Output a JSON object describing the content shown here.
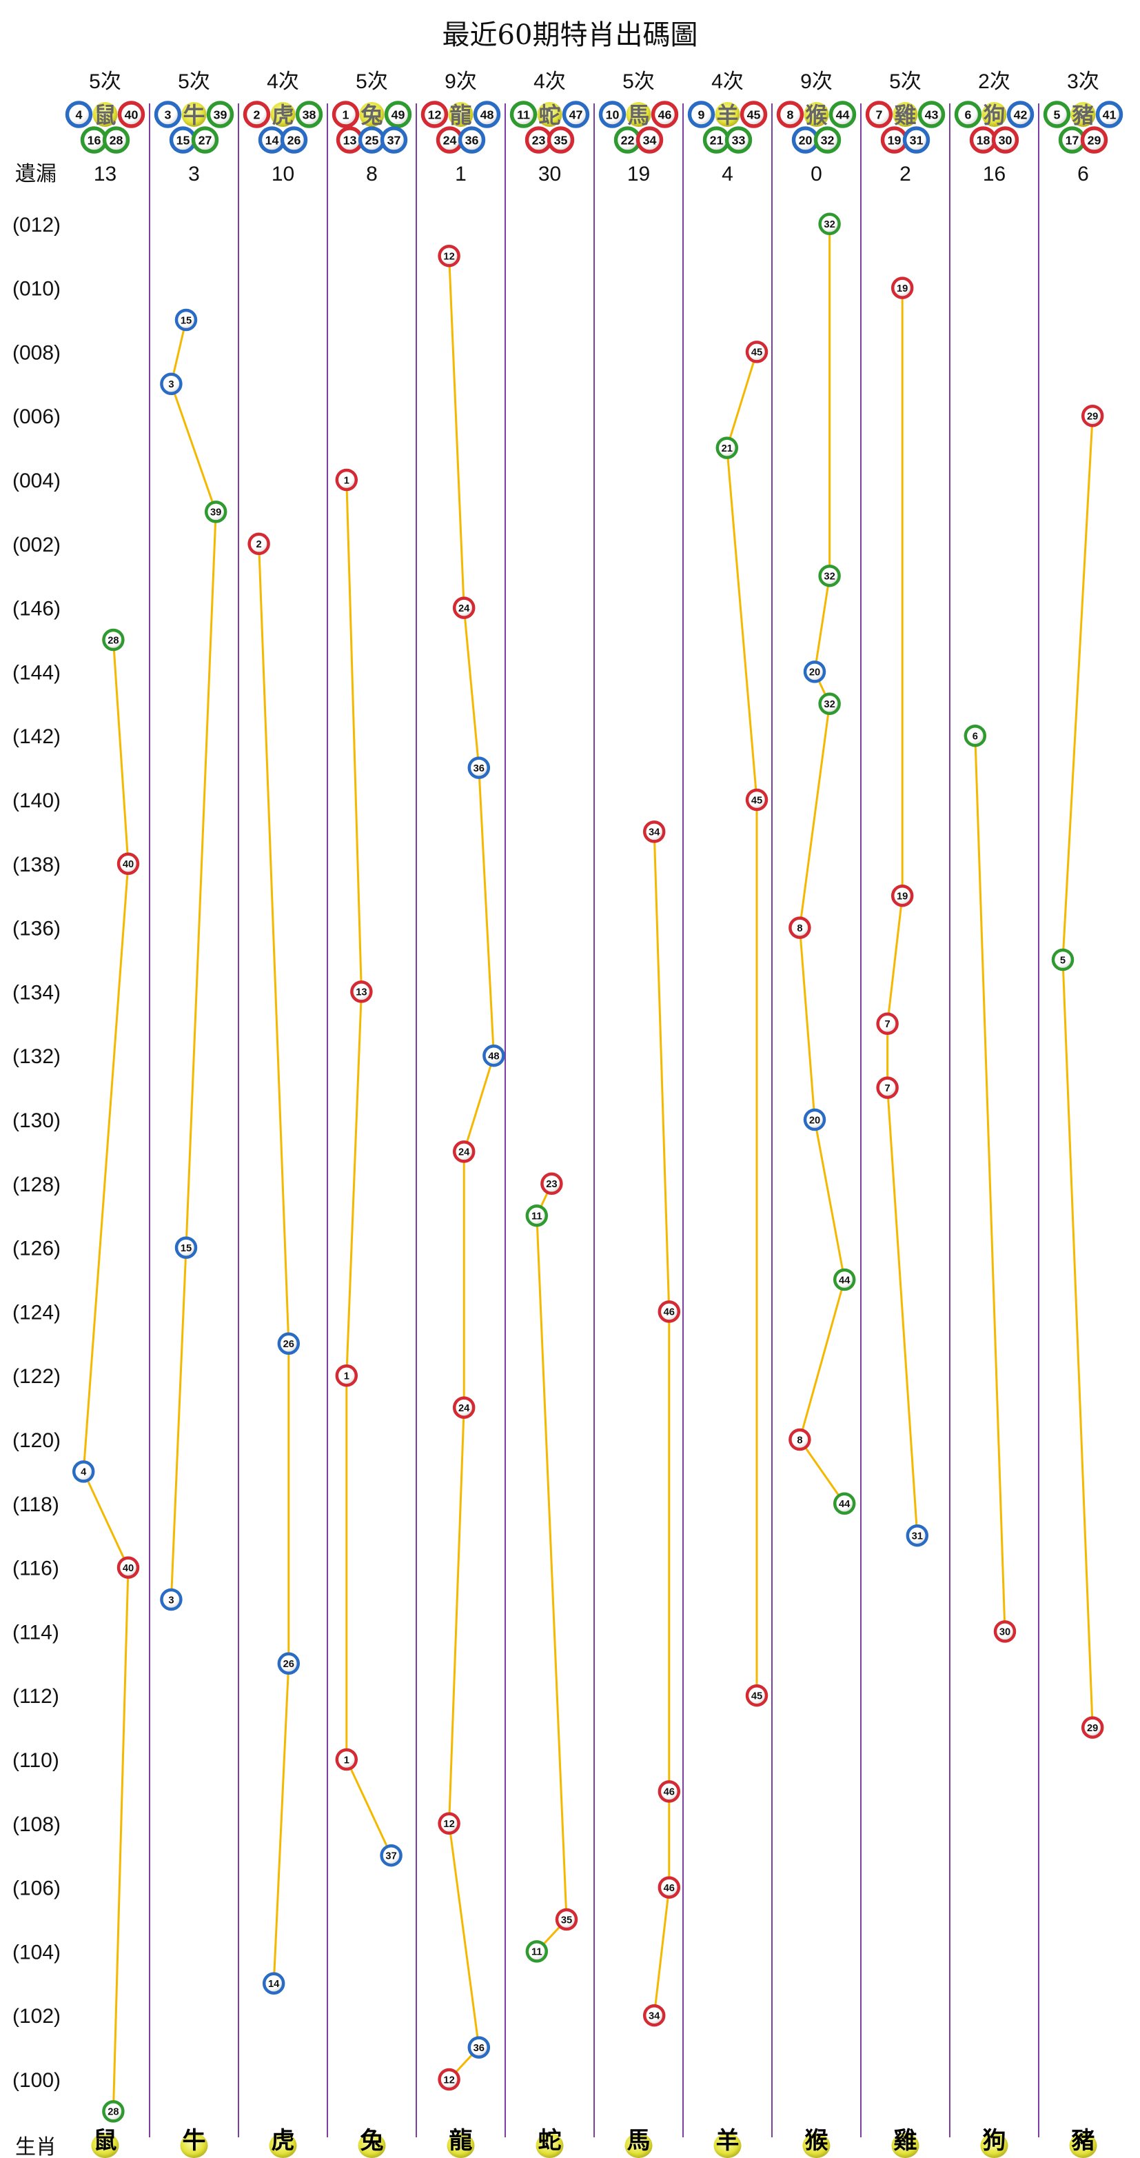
{
  "title": "最近60期特肖出碼圖",
  "miss_label": "遺漏",
  "zodiac_label": "生肖",
  "colors": {
    "red": "#d42a33",
    "blue": "#2a6cc4",
    "green": "#2f9a2f",
    "line": "#f5b800",
    "divider": "#7a3fa0",
    "zodiac_ball": "#e0e040"
  },
  "ball_colors": {
    "red": [
      1,
      2,
      7,
      8,
      12,
      13,
      18,
      19,
      23,
      24,
      29,
      30,
      34,
      35,
      40,
      45,
      46
    ],
    "blue": [
      3,
      4,
      9,
      10,
      14,
      15,
      20,
      25,
      26,
      31,
      36,
      37,
      41,
      42,
      47,
      48
    ],
    "green": [
      5,
      6,
      11,
      16,
      17,
      21,
      22,
      27,
      28,
      32,
      33,
      38,
      39,
      43,
      44,
      49
    ]
  },
  "chart_data": {
    "type": "scatter",
    "title": "最近60期特肖出碼圖",
    "periods": [
      "099",
      "100",
      "101",
      "102",
      "103",
      "104",
      "105",
      "106",
      "107",
      "108",
      "109",
      "110",
      "111",
      "112",
      "113",
      "114",
      "115",
      "116",
      "117",
      "118",
      "119",
      "120",
      "121",
      "122",
      "123",
      "124",
      "125",
      "126",
      "127",
      "128",
      "129",
      "130",
      "131",
      "132",
      "133",
      "134",
      "135",
      "136",
      "137",
      "138",
      "139",
      "140",
      "141",
      "142",
      "143",
      "144",
      "145",
      "146",
      "001",
      "002",
      "003",
      "004",
      "005",
      "006",
      "007",
      "008",
      "009",
      "010",
      "011",
      "012"
    ],
    "period_labels": [
      "(100)",
      "(102)",
      "(104)",
      "(106)",
      "(108)",
      "(110)",
      "(112)",
      "(114)",
      "(116)",
      "(118)",
      "(120)",
      "(122)",
      "(124)",
      "(126)",
      "(128)",
      "(130)",
      "(132)",
      "(134)",
      "(136)",
      "(138)",
      "(140)",
      "(142)",
      "(144)",
      "(146)",
      "(002)",
      "(004)",
      "(006)",
      "(008)",
      "(010)",
      "(012)"
    ],
    "columns": [
      {
        "zodiac": "鼠",
        "count": "5次",
        "miss": "13",
        "numbers_top": [
          4,
          40
        ],
        "numbers_bottom": [
          16,
          28
        ],
        "points": [
          {
            "period": "099",
            "number": 28
          },
          {
            "period": "116",
            "number": 40
          },
          {
            "period": "119",
            "number": 4
          },
          {
            "period": "138",
            "number": 40
          },
          {
            "period": "145",
            "number": 28
          }
        ]
      },
      {
        "zodiac": "牛",
        "count": "5次",
        "miss": "3",
        "numbers_top": [
          3,
          39
        ],
        "numbers_bottom": [
          15,
          27
        ],
        "points": [
          {
            "period": "115",
            "number": 3
          },
          {
            "period": "126",
            "number": 15
          },
          {
            "period": "003",
            "number": 39
          },
          {
            "period": "007",
            "number": 3
          },
          {
            "period": "009",
            "number": 15
          }
        ]
      },
      {
        "zodiac": "虎",
        "count": "4次",
        "miss": "10",
        "numbers_top": [
          2,
          38
        ],
        "numbers_bottom": [
          14,
          26
        ],
        "points": [
          {
            "period": "103",
            "number": 14
          },
          {
            "period": "113",
            "number": 26
          },
          {
            "period": "123",
            "number": 26
          },
          {
            "period": "002",
            "number": 2
          }
        ]
      },
      {
        "zodiac": "兔",
        "count": "5次",
        "miss": "8",
        "numbers_top": [
          1,
          49
        ],
        "numbers_bottom": [
          13,
          25,
          37
        ],
        "points": [
          {
            "period": "107",
            "number": 37
          },
          {
            "period": "110",
            "number": 1
          },
          {
            "period": "122",
            "number": 1
          },
          {
            "period": "134",
            "number": 13
          },
          {
            "period": "004",
            "number": 1
          }
        ]
      },
      {
        "zodiac": "龍",
        "count": "9次",
        "miss": "1",
        "numbers_top": [
          12,
          48
        ],
        "numbers_bottom": [
          24,
          36
        ],
        "points": [
          {
            "period": "100",
            "number": 12
          },
          {
            "period": "101",
            "number": 36
          },
          {
            "period": "108",
            "number": 12
          },
          {
            "period": "121",
            "number": 24
          },
          {
            "period": "129",
            "number": 24
          },
          {
            "period": "132",
            "number": 48
          },
          {
            "period": "141",
            "number": 36
          },
          {
            "period": "146",
            "number": 24
          },
          {
            "period": "011",
            "number": 12
          }
        ]
      },
      {
        "zodiac": "蛇",
        "count": "4次",
        "miss": "30",
        "numbers_top": [
          11,
          47
        ],
        "numbers_bottom": [
          23,
          35
        ],
        "points": [
          {
            "period": "104",
            "number": 11
          },
          {
            "period": "105",
            "number": 35
          },
          {
            "period": "127",
            "number": 11
          },
          {
            "period": "128",
            "number": 23
          }
        ]
      },
      {
        "zodiac": "馬",
        "count": "5次",
        "miss": "19",
        "numbers_top": [
          10,
          46
        ],
        "numbers_bottom": [
          22,
          34
        ],
        "points": [
          {
            "period": "102",
            "number": 34
          },
          {
            "period": "106",
            "number": 46
          },
          {
            "period": "109",
            "number": 46
          },
          {
            "period": "124",
            "number": 46
          },
          {
            "period": "139",
            "number": 34
          }
        ]
      },
      {
        "zodiac": "羊",
        "count": "4次",
        "miss": "4",
        "numbers_top": [
          9,
          45
        ],
        "numbers_bottom": [
          21,
          33
        ],
        "points": [
          {
            "period": "112",
            "number": 45
          },
          {
            "period": "140",
            "number": 45
          },
          {
            "period": "005",
            "number": 21
          },
          {
            "period": "008",
            "number": 45
          }
        ]
      },
      {
        "zodiac": "猴",
        "count": "9次",
        "miss": "0",
        "numbers_top": [
          8,
          44
        ],
        "numbers_bottom": [
          20,
          32
        ],
        "points": [
          {
            "period": "118",
            "number": 44
          },
          {
            "period": "120",
            "number": 8
          },
          {
            "period": "125",
            "number": 44
          },
          {
            "period": "130",
            "number": 20
          },
          {
            "period": "136",
            "number": 8
          },
          {
            "period": "143",
            "number": 32
          },
          {
            "period": "144",
            "number": 20
          },
          {
            "period": "001",
            "number": 32
          },
          {
            "period": "012",
            "number": 32
          }
        ]
      },
      {
        "zodiac": "雞",
        "count": "5次",
        "miss": "2",
        "numbers_top": [
          7,
          43
        ],
        "numbers_bottom": [
          19,
          31
        ],
        "points": [
          {
            "period": "117",
            "number": 31
          },
          {
            "period": "131",
            "number": 7
          },
          {
            "period": "133",
            "number": 7
          },
          {
            "period": "137",
            "number": 19
          },
          {
            "period": "010",
            "number": 19
          }
        ]
      },
      {
        "zodiac": "狗",
        "count": "2次",
        "miss": "16",
        "numbers_top": [
          6,
          42
        ],
        "numbers_bottom": [
          18,
          30
        ],
        "points": [
          {
            "period": "114",
            "number": 30
          },
          {
            "period": "142",
            "number": 6
          }
        ]
      },
      {
        "zodiac": "豬",
        "count": "3次",
        "miss": "6",
        "numbers_top": [
          5,
          41
        ],
        "numbers_bottom": [
          17,
          29
        ],
        "points": [
          {
            "period": "111",
            "number": 29
          },
          {
            "period": "135",
            "number": 5
          },
          {
            "period": "006",
            "number": 29
          }
        ]
      }
    ]
  }
}
